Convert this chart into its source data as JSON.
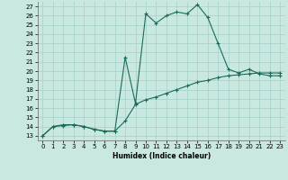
{
  "xlabel": "Humidex (Indice chaleur)",
  "xlim": [
    -0.5,
    23.5
  ],
  "ylim": [
    12.5,
    27.5
  ],
  "yticks": [
    13,
    14,
    15,
    16,
    17,
    18,
    19,
    20,
    21,
    22,
    23,
    24,
    25,
    26,
    27
  ],
  "xticks": [
    0,
    1,
    2,
    3,
    4,
    5,
    6,
    7,
    8,
    9,
    10,
    11,
    12,
    13,
    14,
    15,
    16,
    17,
    18,
    19,
    20,
    21,
    22,
    23
  ],
  "bg_color": "#c8e8e0",
  "line_color": "#1a6b5a",
  "grid_color": "#aad4cc",
  "line1_x": [
    0,
    1,
    2,
    3,
    4,
    5,
    6,
    7,
    8,
    9,
    10,
    11,
    12,
    13,
    14,
    15,
    16,
    17,
    18,
    19,
    20,
    21,
    22,
    23
  ],
  "line1_y": [
    13,
    14,
    14.2,
    14.2,
    14.0,
    13.7,
    13.5,
    13.5,
    21.5,
    16.5,
    26.2,
    25.2,
    26.0,
    26.4,
    26.2,
    27.2,
    25.8,
    23.0,
    20.2,
    19.8,
    20.2,
    19.7,
    19.5,
    19.5
  ],
  "line2_x": [
    0,
    1,
    2,
    3,
    4,
    5,
    6,
    7,
    8,
    9,
    10,
    11,
    12,
    13,
    14,
    15,
    16,
    17,
    18,
    19,
    20,
    21,
    22,
    23
  ],
  "line2_y": [
    13,
    14,
    14.1,
    14.2,
    14.0,
    13.7,
    13.5,
    13.5,
    14.6,
    16.4,
    16.9,
    17.2,
    17.6,
    18.0,
    18.4,
    18.8,
    19.0,
    19.3,
    19.5,
    19.6,
    19.7,
    19.8,
    19.8,
    19.8
  ]
}
